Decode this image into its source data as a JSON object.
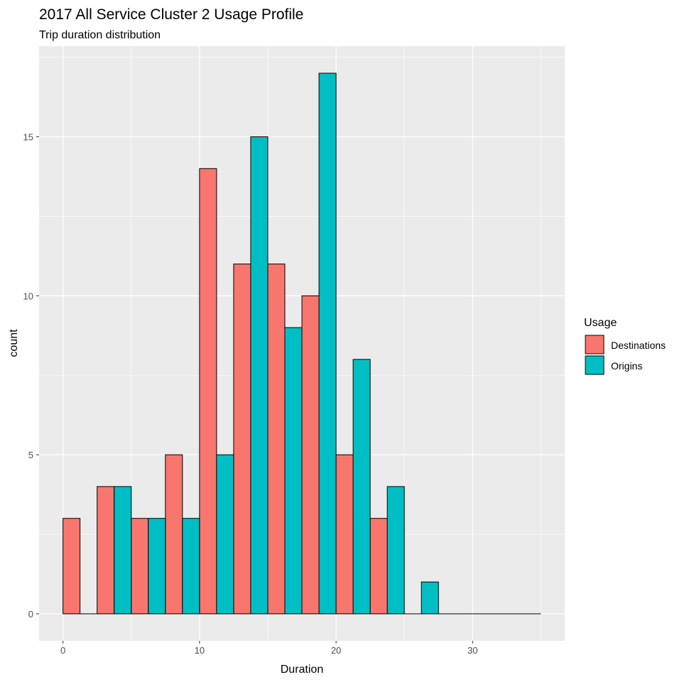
{
  "chart_data": {
    "type": "bar",
    "title": "2017 All Service Cluster 2 Usage Profile",
    "subtitle": "Trip duration distribution",
    "xlabel": "Duration",
    "ylabel": "count",
    "xlim": [
      -1.75,
      36.75
    ],
    "ylim": [
      -0.85,
      17.85
    ],
    "x_ticks": [
      0,
      10,
      20,
      30
    ],
    "x_tick_labels": [
      "0",
      "10",
      "20",
      "30"
    ],
    "y_ticks": [
      0,
      5,
      10,
      15
    ],
    "y_tick_labels": [
      "0",
      "5",
      "10",
      "15"
    ],
    "grid": true,
    "legend": {
      "title": "Usage",
      "position": "right"
    },
    "bin_width": 2.5,
    "series": [
      {
        "name": "Destinations",
        "color": "#F8766D",
        "bin_centers": [
          1.25,
          3.75,
          6.25,
          8.75,
          11.25,
          13.75,
          16.25,
          18.75,
          21.25,
          23.75,
          26.25,
          28.75,
          31.25,
          33.75
        ],
        "values": [
          3,
          4,
          3,
          5,
          14,
          11,
          11,
          10,
          5,
          3,
          0,
          0,
          0,
          0
        ]
      },
      {
        "name": "Origins",
        "color": "#00BFC4",
        "bin_centers": [
          1.25,
          3.75,
          6.25,
          8.75,
          11.25,
          13.75,
          16.25,
          18.75,
          21.25,
          23.75,
          26.25,
          28.75,
          31.25,
          33.75
        ],
        "values": [
          0,
          4,
          3,
          3,
          5,
          15,
          9,
          17,
          8,
          4,
          1,
          0,
          0,
          0
        ]
      }
    ]
  }
}
